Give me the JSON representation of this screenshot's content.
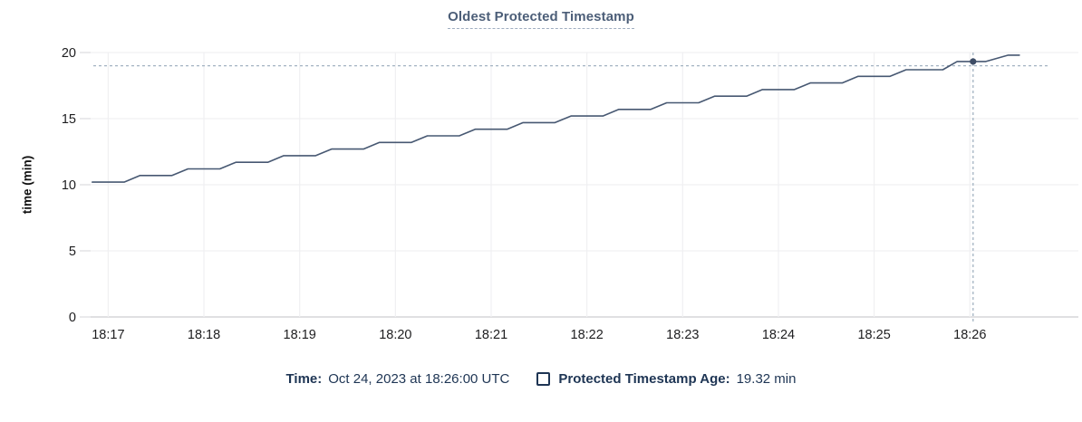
{
  "chart": {
    "title": "Oldest Protected Timestamp",
    "y_axis_label": "time (min)"
  },
  "hover_legend": {
    "time_label": "Time:",
    "time_value": "Oct 24, 2023 at 18:26:00 UTC",
    "series_label": "Protected Timestamp Age:",
    "series_value": "19.32 min"
  },
  "colors": {
    "series_line": "#475872",
    "marker_dot": "#3e4d66",
    "crosshair": "#a3b3c2",
    "gridline": "#f0f0f2",
    "axis_line": "#d6d6d8",
    "tick_mark": "#dcdcde",
    "title_text": "#4c5e78",
    "legend_text": "#1e3554",
    "tick_text": "#1d1d1f"
  },
  "chart_data": {
    "type": "line",
    "title": "Oldest Protected Timestamp",
    "xlabel": "",
    "ylabel": "time (min)",
    "ylim": [
      0,
      20
    ],
    "y_ticks": [
      0,
      5,
      10,
      15,
      20
    ],
    "x_ticks": [
      "18:17",
      "18:18",
      "18:19",
      "18:20",
      "18:21",
      "18:22",
      "18:23",
      "18:24",
      "18:25",
      "18:26"
    ],
    "x_domain": [
      "18:16:49",
      "18:27:04"
    ],
    "grid": true,
    "legend_position": "bottom",
    "series": [
      {
        "name": "Protected Timestamp Age",
        "unit": "min",
        "points": [
          [
            "18:16:50",
            10.2
          ],
          [
            "18:17:10",
            10.2
          ],
          [
            "18:17:20",
            10.7
          ],
          [
            "18:17:40",
            10.7
          ],
          [
            "18:17:50",
            11.2
          ],
          [
            "18:18:10",
            11.2
          ],
          [
            "18:18:20",
            11.7
          ],
          [
            "18:18:40",
            11.7
          ],
          [
            "18:18:50",
            12.2
          ],
          [
            "18:19:10",
            12.2
          ],
          [
            "18:19:20",
            12.7
          ],
          [
            "18:19:40",
            12.7
          ],
          [
            "18:19:50",
            13.2
          ],
          [
            "18:20:10",
            13.2
          ],
          [
            "18:20:20",
            13.7
          ],
          [
            "18:20:40",
            13.7
          ],
          [
            "18:20:50",
            14.2
          ],
          [
            "18:21:10",
            14.2
          ],
          [
            "18:21:20",
            14.7
          ],
          [
            "18:21:40",
            14.7
          ],
          [
            "18:21:50",
            15.2
          ],
          [
            "18:22:10",
            15.2
          ],
          [
            "18:22:20",
            15.7
          ],
          [
            "18:22:40",
            15.7
          ],
          [
            "18:22:50",
            16.2
          ],
          [
            "18:23:10",
            16.2
          ],
          [
            "18:23:20",
            16.7
          ],
          [
            "18:23:40",
            16.7
          ],
          [
            "18:23:50",
            17.2
          ],
          [
            "18:24:10",
            17.2
          ],
          [
            "18:24:20",
            17.7
          ],
          [
            "18:24:40",
            17.7
          ],
          [
            "18:24:50",
            18.2
          ],
          [
            "18:25:10",
            18.2
          ],
          [
            "18:25:20",
            18.7
          ],
          [
            "18:25:43",
            18.7
          ],
          [
            "18:25:52",
            19.32
          ],
          [
            "18:26:10",
            19.32
          ],
          [
            "18:26:24",
            19.8
          ],
          [
            "18:26:31",
            19.8
          ]
        ]
      }
    ],
    "crosshair": {
      "hover_time": "18:26:02",
      "snap_value": 19.32,
      "mouse_value": 19.0
    }
  }
}
